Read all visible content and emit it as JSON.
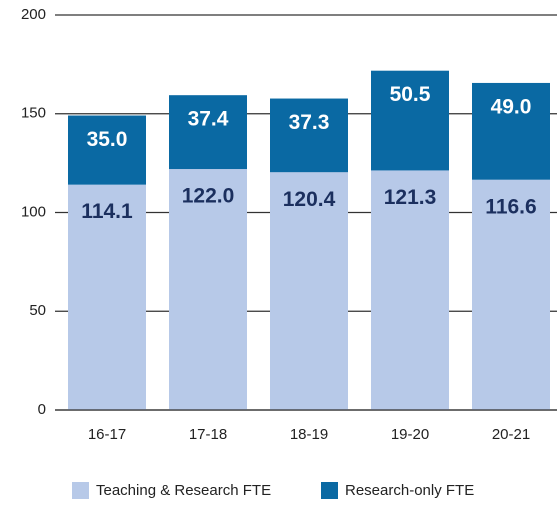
{
  "chart_data": {
    "type": "stacked_bar",
    "categories": [
      "16-17",
      "17-18",
      "18-19",
      "19-20",
      "20-21"
    ],
    "series": [
      {
        "name": "Teaching & Research FTE",
        "color": "#b7c9e8",
        "values": [
          114.1,
          122.0,
          120.4,
          121.3,
          116.6
        ],
        "value_labels": [
          "114.1",
          "122.0",
          "120.4",
          "121.3",
          "116.6"
        ]
      },
      {
        "name": "Research-only FTE",
        "color": "#0a69a3",
        "values": [
          35.0,
          37.4,
          37.3,
          50.5,
          49.0
        ],
        "value_labels": [
          "35.0",
          "37.4",
          "37.3",
          "50.5",
          "49.0"
        ]
      }
    ],
    "ylim": [
      0,
      200
    ],
    "yticks": [
      0,
      50,
      100,
      150,
      200
    ],
    "grid": true,
    "legend": "bottom"
  }
}
